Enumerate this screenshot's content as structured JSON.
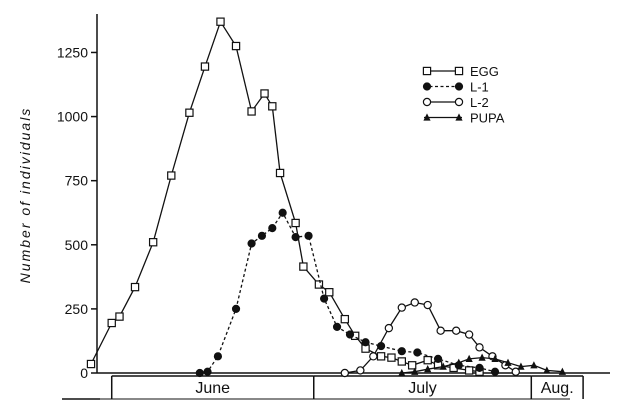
{
  "chart_data": {
    "type": "line",
    "ylabel": "Number of individuals",
    "ylim": [
      0,
      1400
    ],
    "yticks": [
      0,
      250,
      500,
      750,
      1000,
      1250
    ],
    "xlim": [
      0,
      100
    ],
    "months": [
      {
        "label": "June",
        "start": 4,
        "end": 43
      },
      {
        "label": "July",
        "start": 43,
        "end": 85
      },
      {
        "label": "Aug.",
        "start": 85,
        "end": 95
      }
    ],
    "legend_position": "upper-right",
    "grid": false,
    "series": [
      {
        "name": "EGG",
        "marker": "square-open",
        "dash": "solid",
        "points": [
          [
            0,
            35
          ],
          [
            4,
            195
          ],
          [
            5.5,
            220
          ],
          [
            8.5,
            335
          ],
          [
            12,
            510
          ],
          [
            15.5,
            770
          ],
          [
            19,
            1015
          ],
          [
            22,
            1195
          ],
          [
            25,
            1370
          ],
          [
            28,
            1275
          ],
          [
            31,
            1020
          ],
          [
            33.5,
            1090
          ],
          [
            35,
            1040
          ],
          [
            36.5,
            780
          ],
          [
            39.5,
            585
          ],
          [
            41,
            415
          ],
          [
            44,
            345
          ],
          [
            46,
            315
          ],
          [
            49,
            210
          ],
          [
            51,
            145
          ],
          [
            53,
            95
          ],
          [
            56,
            65
          ],
          [
            58,
            60
          ],
          [
            60,
            45
          ],
          [
            62,
            30
          ],
          [
            65,
            50
          ],
          [
            67,
            30
          ],
          [
            70,
            20
          ],
          [
            73,
            10
          ],
          [
            75,
            5
          ]
        ]
      },
      {
        "name": "L-1",
        "marker": "circle-filled",
        "dash": "dashed",
        "points": [
          [
            21,
            0
          ],
          [
            22.5,
            5
          ],
          [
            24.5,
            65
          ],
          [
            28,
            250
          ],
          [
            31,
            505
          ],
          [
            33,
            535
          ],
          [
            35,
            565
          ],
          [
            37,
            625
          ],
          [
            39.5,
            530
          ],
          [
            42,
            535
          ],
          [
            45,
            290
          ],
          [
            47.5,
            180
          ],
          [
            50,
            150
          ],
          [
            53,
            120
          ],
          [
            56,
            105
          ],
          [
            60,
            85
          ],
          [
            63,
            80
          ],
          [
            67,
            55
          ],
          [
            71,
            30
          ],
          [
            75,
            20
          ],
          [
            78,
            5
          ]
        ]
      },
      {
        "name": "L-2",
        "marker": "circle-open",
        "dash": "solid",
        "points": [
          [
            49,
            0
          ],
          [
            52,
            10
          ],
          [
            54.5,
            65
          ],
          [
            57.5,
            175
          ],
          [
            60,
            255
          ],
          [
            62.5,
            275
          ],
          [
            65,
            265
          ],
          [
            67.5,
            165
          ],
          [
            70.5,
            165
          ],
          [
            73,
            150
          ],
          [
            75,
            100
          ],
          [
            77.5,
            65
          ],
          [
            80,
            30
          ],
          [
            82,
            5
          ]
        ]
      },
      {
        "name": "PUPA",
        "marker": "triangle-filled",
        "dash": "solid",
        "points": [
          [
            60,
            0
          ],
          [
            62.5,
            5
          ],
          [
            65,
            15
          ],
          [
            68,
            25
          ],
          [
            71,
            40
          ],
          [
            73,
            55
          ],
          [
            75.5,
            60
          ],
          [
            78,
            55
          ],
          [
            80.5,
            40
          ],
          [
            83,
            25
          ],
          [
            85.5,
            30
          ],
          [
            88,
            10
          ],
          [
            91,
            5
          ]
        ]
      }
    ]
  }
}
